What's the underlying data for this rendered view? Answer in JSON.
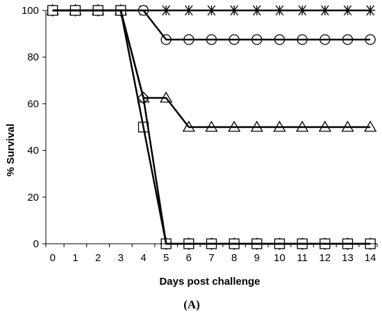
{
  "chart_data": {
    "type": "line",
    "title": "",
    "xlabel": "Days post challenge",
    "ylabel": "% Survival",
    "panel_label": "(A)",
    "x": [
      0,
      1,
      2,
      3,
      4,
      5,
      6,
      7,
      8,
      9,
      10,
      11,
      12,
      13,
      14
    ],
    "xlim": [
      -0.3,
      14.3
    ],
    "ylim": [
      0,
      100
    ],
    "yticks": [
      0,
      20,
      40,
      60,
      80,
      100
    ],
    "grid": false,
    "legend": "none",
    "series": [
      {
        "marker": "star",
        "values": [
          100,
          100,
          100,
          100,
          100,
          100,
          100,
          100,
          100,
          100,
          100,
          100,
          100,
          100,
          100
        ]
      },
      {
        "marker": "circle",
        "values": [
          100,
          100,
          100,
          100,
          100,
          87.5,
          87.5,
          87.5,
          87.5,
          87.5,
          87.5,
          87.5,
          87.5,
          87.5,
          87.5
        ]
      },
      {
        "marker": "triangle",
        "values": [
          100,
          100,
          100,
          100,
          62.5,
          62.5,
          50,
          50,
          50,
          50,
          50,
          50,
          50,
          50,
          50
        ]
      },
      {
        "marker": "diamond",
        "values": [
          100,
          100,
          100,
          100,
          62.5,
          0,
          0,
          0,
          0,
          0,
          0,
          0,
          0,
          0,
          0
        ]
      },
      {
        "marker": "square",
        "values": [
          100,
          100,
          100,
          100,
          50,
          0,
          0,
          0,
          0,
          0,
          0,
          0,
          0,
          0,
          0
        ]
      }
    ]
  }
}
